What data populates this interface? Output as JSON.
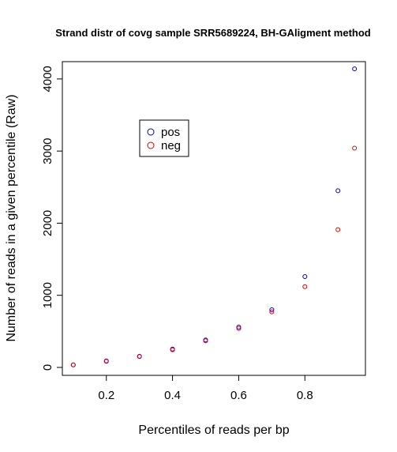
{
  "chart_data": {
    "type": "scatter",
    "title": "Strand distr of covg sample SRR5689224, BH-GAligment method",
    "xlabel": "Percentiles of reads per bp",
    "ylabel": "Number of reads in a given percentile (Raw)",
    "x": [
      0.1,
      0.2,
      0.3,
      0.4,
      0.5,
      0.6,
      0.7,
      0.8,
      0.9,
      0.95
    ],
    "series": [
      {
        "name": "pos",
        "color": "#0000cc",
        "values": [
          35,
          90,
          155,
          255,
          380,
          560,
          800,
          1260,
          2450,
          4140
        ]
      },
      {
        "name": "neg",
        "color": "#dd0000",
        "values": [
          35,
          85,
          150,
          245,
          370,
          540,
          770,
          1120,
          1910,
          3040
        ]
      }
    ],
    "xlim": [
      0.067,
      0.983
    ],
    "ylim": [
      -110,
      4240
    ],
    "xticks": [
      0.2,
      0.4,
      0.6,
      0.8
    ],
    "xtick_labels": [
      "0.2",
      "0.4",
      "0.6",
      "0.8"
    ],
    "yticks": [
      0,
      1000,
      2000,
      3000,
      4000
    ],
    "ytick_labels": [
      "0",
      "1000",
      "2000",
      "3000",
      "4000"
    ],
    "grid": false,
    "legend_position": "top-left"
  }
}
